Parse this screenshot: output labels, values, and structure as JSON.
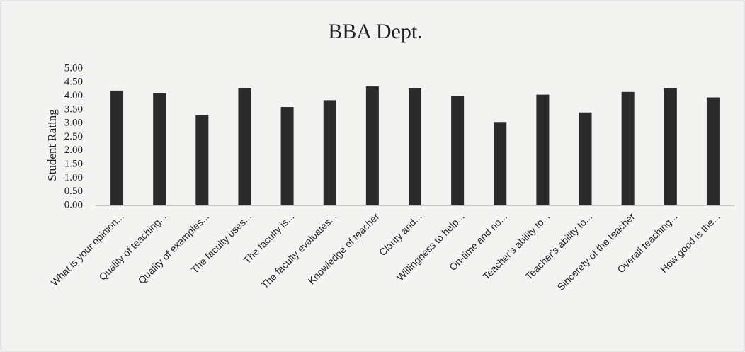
{
  "chart_data": {
    "type": "bar",
    "title": "BBA Dept.",
    "y_label": "Student Rating",
    "categories": [
      "What is your opinion...",
      "Quality of teaching...",
      "Quality of examples...",
      "The faculty uses...",
      "The faculty is...",
      "The faculty evaluates...",
      "Knowledge of teacher",
      "Clarity and...",
      "Willingness to help...",
      "On-time and no...",
      "Teacher's ability to...",
      "Teacher's ability to...",
      "Sincerety of the teacher",
      "Overall teaching...",
      "How good is the..."
    ],
    "values": [
      4.2,
      4.1,
      3.3,
      4.3,
      3.6,
      3.85,
      4.35,
      4.3,
      4.0,
      3.05,
      4.05,
      3.4,
      4.15,
      4.3,
      3.95
    ],
    "color": "#2a2a2a",
    "ylim": [
      0,
      5
    ],
    "yticks": [
      {
        "value": 0,
        "label": "0.00"
      },
      {
        "value": 0.5,
        "label": "0.50"
      },
      {
        "value": 1,
        "label": "1.00"
      },
      {
        "value": 1.5,
        "label": "1.50"
      },
      {
        "value": 2,
        "label": "2.00"
      },
      {
        "value": 2.5,
        "label": "2.50"
      },
      {
        "value": 3,
        "label": "3.00"
      },
      {
        "value": 3.5,
        "label": "3.50"
      },
      {
        "value": 4,
        "label": "4.00"
      },
      {
        "value": 4.5,
        "label": "4.50"
      },
      {
        "value": 5,
        "label": "5.00"
      }
    ],
    "grid": false
  }
}
